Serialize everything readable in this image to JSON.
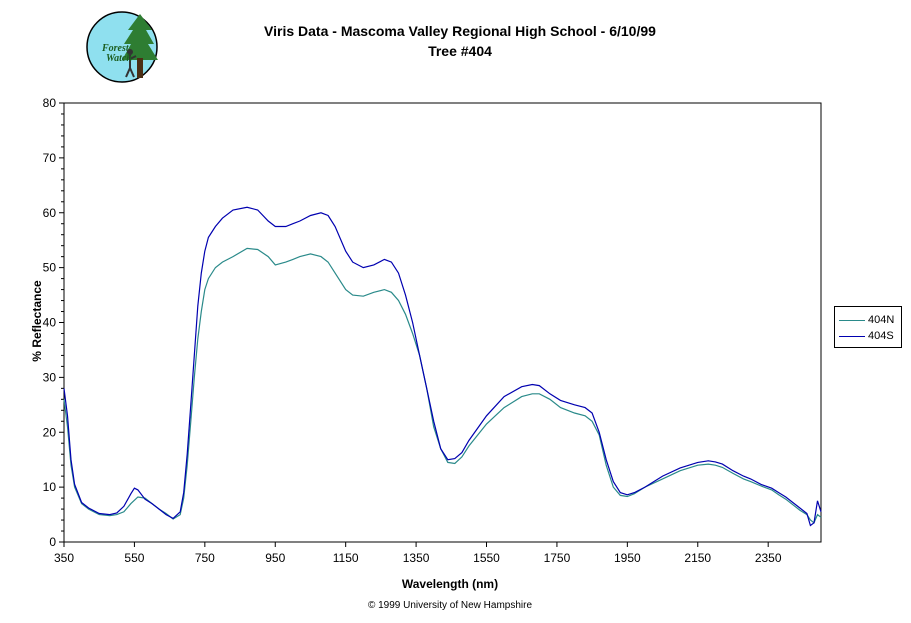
{
  "header": {
    "logo_text_top": "Forest",
    "logo_text_bottom": "Watch"
  },
  "footer": {
    "copyright": "© 1999 University of New Hampshire"
  },
  "colors": {
    "series_404N": "#2a8a8a",
    "series_404S": "#0000b0",
    "logo_bg": "#8fe0ef",
    "tree": "#2e7d32"
  },
  "chart_data": {
    "type": "line",
    "title": "Viris Data - Mascoma Valley Regional High School - 6/10/99",
    "subtitle": "Tree #404",
    "xlabel": "Wavelength (nm)",
    "ylabel": "% Reflectance",
    "xlim": [
      350,
      2500
    ],
    "ylim": [
      0,
      80
    ],
    "x_ticks": [
      "350",
      "550",
      "750",
      "950",
      "1150",
      "1350",
      "1550",
      "1750",
      "1950",
      "2150",
      "2350"
    ],
    "y_ticks": [
      "0",
      "10",
      "20",
      "30",
      "40",
      "50",
      "60",
      "70",
      "80"
    ],
    "grid": false,
    "legend": "right",
    "series": [
      {
        "name": "404N",
        "x": [
          350,
          360,
          370,
          380,
          400,
          420,
          450,
          480,
          500,
          520,
          540,
          560,
          580,
          600,
          620,
          640,
          660,
          680,
          690,
          700,
          710,
          720,
          730,
          740,
          750,
          760,
          780,
          800,
          830,
          870,
          900,
          930,
          950,
          980,
          1000,
          1020,
          1050,
          1080,
          1100,
          1120,
          1150,
          1170,
          1200,
          1230,
          1260,
          1280,
          1300,
          1320,
          1340,
          1360,
          1380,
          1400,
          1420,
          1440,
          1460,
          1480,
          1500,
          1550,
          1600,
          1650,
          1680,
          1700,
          1730,
          1760,
          1800,
          1830,
          1850,
          1870,
          1890,
          1910,
          1930,
          1950,
          1970,
          2000,
          2050,
          2100,
          2150,
          2180,
          2200,
          2220,
          2250,
          2280,
          2300,
          2330,
          2360,
          2380,
          2400,
          2420,
          2440,
          2460,
          2470,
          2480,
          2490,
          2500
        ],
        "y": [
          26,
          21,
          14,
          10,
          7,
          6,
          5,
          4.8,
          5,
          5.5,
          7,
          8.2,
          8,
          7,
          6,
          5.2,
          4.2,
          5,
          8,
          14,
          22,
          30,
          37,
          42,
          46,
          48,
          50,
          51,
          52,
          53.5,
          53.3,
          52,
          50.5,
          51,
          51.5,
          52,
          52.5,
          52,
          51,
          49,
          46,
          45,
          44.8,
          45.5,
          46,
          45.5,
          44,
          41.5,
          38,
          34,
          28,
          21,
          17,
          14.5,
          14.3,
          15.5,
          17.5,
          21.5,
          24.5,
          26.5,
          27,
          27,
          26,
          24.5,
          23.5,
          23,
          22,
          19.5,
          14,
          10,
          8.5,
          8.3,
          8.8,
          10,
          11.5,
          13,
          14,
          14.2,
          14,
          13.6,
          12.5,
          11.5,
          11,
          10.2,
          9.5,
          8.6,
          7.8,
          6.8,
          5.8,
          5,
          4,
          3.5,
          5,
          4.5
        ]
      },
      {
        "name": "404S",
        "x": [
          350,
          360,
          370,
          380,
          400,
          420,
          450,
          480,
          500,
          520,
          540,
          550,
          560,
          580,
          600,
          620,
          640,
          660,
          680,
          690,
          700,
          710,
          720,
          730,
          740,
          750,
          760,
          780,
          800,
          830,
          870,
          900,
          930,
          950,
          980,
          1000,
          1020,
          1050,
          1080,
          1100,
          1120,
          1150,
          1170,
          1200,
          1230,
          1260,
          1280,
          1300,
          1320,
          1340,
          1360,
          1380,
          1400,
          1420,
          1440,
          1460,
          1480,
          1500,
          1550,
          1600,
          1650,
          1680,
          1700,
          1730,
          1760,
          1800,
          1830,
          1850,
          1870,
          1890,
          1910,
          1930,
          1950,
          1970,
          2000,
          2050,
          2100,
          2150,
          2180,
          2200,
          2220,
          2250,
          2280,
          2300,
          2330,
          2360,
          2380,
          2400,
          2420,
          2440,
          2460,
          2470,
          2480,
          2490,
          2500
        ],
        "y": [
          28,
          23,
          15,
          10.5,
          7.2,
          6.2,
          5.2,
          5,
          5.3,
          6.5,
          8.8,
          9.8,
          9.5,
          7.8,
          7,
          6,
          5,
          4.3,
          5.5,
          9,
          16,
          25,
          34,
          43,
          49,
          53,
          55.5,
          57.5,
          59,
          60.5,
          61,
          60.5,
          58.5,
          57.5,
          57.5,
          58,
          58.5,
          59.5,
          60,
          59.5,
          57.5,
          53,
          51,
          50,
          50.5,
          51.5,
          51,
          49,
          45,
          40,
          34,
          28,
          22,
          17,
          15,
          15.2,
          16.3,
          18.5,
          23,
          26.5,
          28.3,
          28.7,
          28.5,
          27,
          25.8,
          25,
          24.5,
          23.5,
          20,
          15,
          11,
          9,
          8.6,
          9,
          10,
          12,
          13.5,
          14.5,
          14.8,
          14.6,
          14.2,
          13,
          12,
          11.5,
          10.5,
          9.8,
          9,
          8.2,
          7.2,
          6.2,
          5.2,
          3,
          3.5,
          7.5,
          5.5
        ]
      }
    ]
  }
}
